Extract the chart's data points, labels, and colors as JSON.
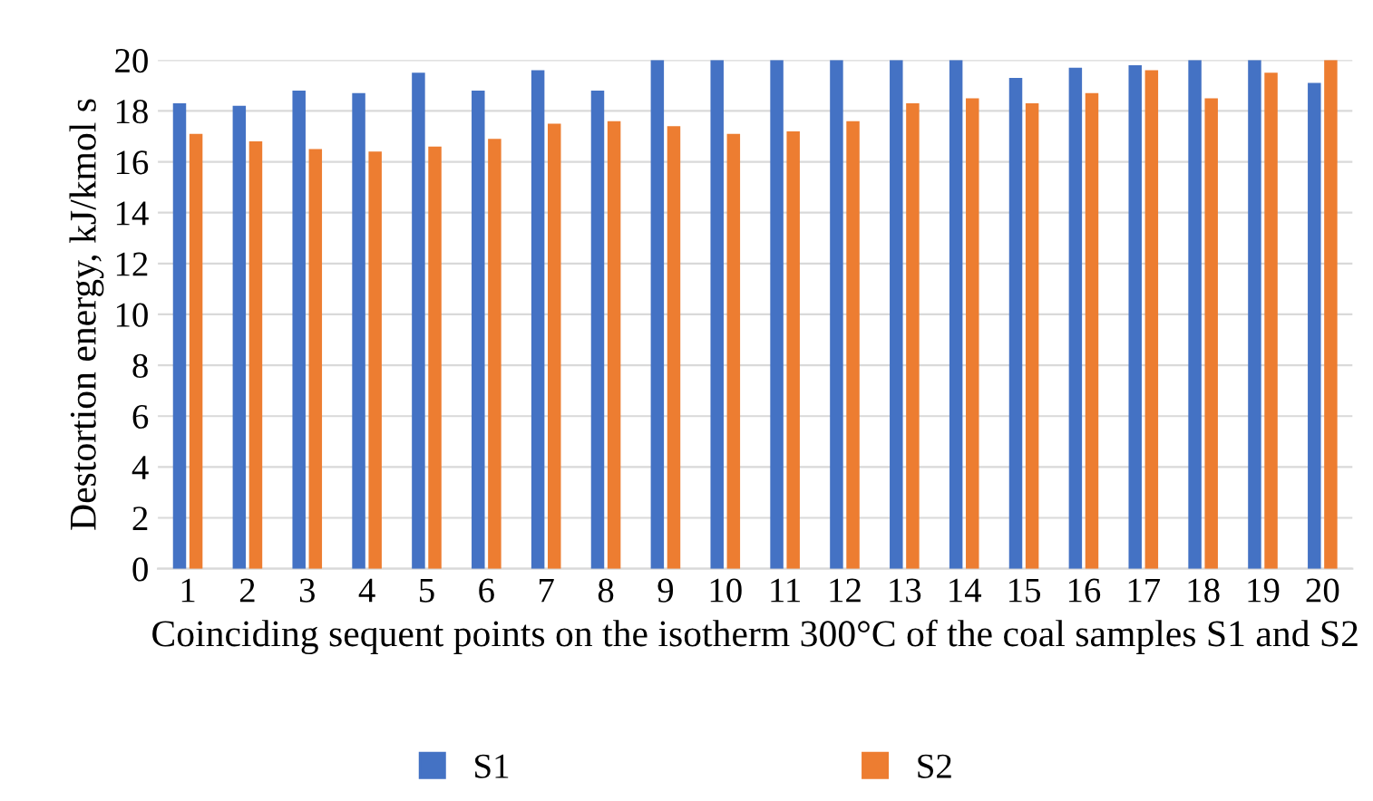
{
  "chart_data": {
    "type": "bar",
    "xlabel": "Coinciding sequent points on the isotherm 300°C of the coal samples S1 and S2",
    "ylabel": "Destortion energy, kJ/kmol s",
    "categories": [
      "1",
      "2",
      "3",
      "4",
      "5",
      "6",
      "7",
      "8",
      "9",
      "10",
      "11",
      "12",
      "13",
      "14",
      "15",
      "16",
      "17",
      "18",
      "19",
      "20"
    ],
    "series": [
      {
        "name": "S1",
        "color": "#4472c4",
        "values": [
          18.3,
          18.2,
          18.8,
          18.7,
          19.5,
          18.8,
          19.6,
          18.8,
          20,
          20,
          20,
          20,
          20,
          20,
          19.3,
          19.7,
          19.8,
          20,
          20,
          19.1
        ]
      },
      {
        "name": "S2",
        "color": "#ed7d31",
        "values": [
          17.1,
          16.8,
          16.5,
          16.4,
          16.6,
          16.9,
          17.5,
          17.6,
          17.4,
          17.1,
          17.2,
          17.6,
          18.3,
          18.5,
          18.3,
          18.7,
          19.6,
          18.5,
          19.5,
          20
        ]
      }
    ],
    "ylim": [
      0,
      20
    ],
    "yticks": [
      0,
      2,
      4,
      6,
      8,
      10,
      12,
      14,
      16,
      18,
      20
    ],
    "grid": "y",
    "legend": "bottom"
  }
}
